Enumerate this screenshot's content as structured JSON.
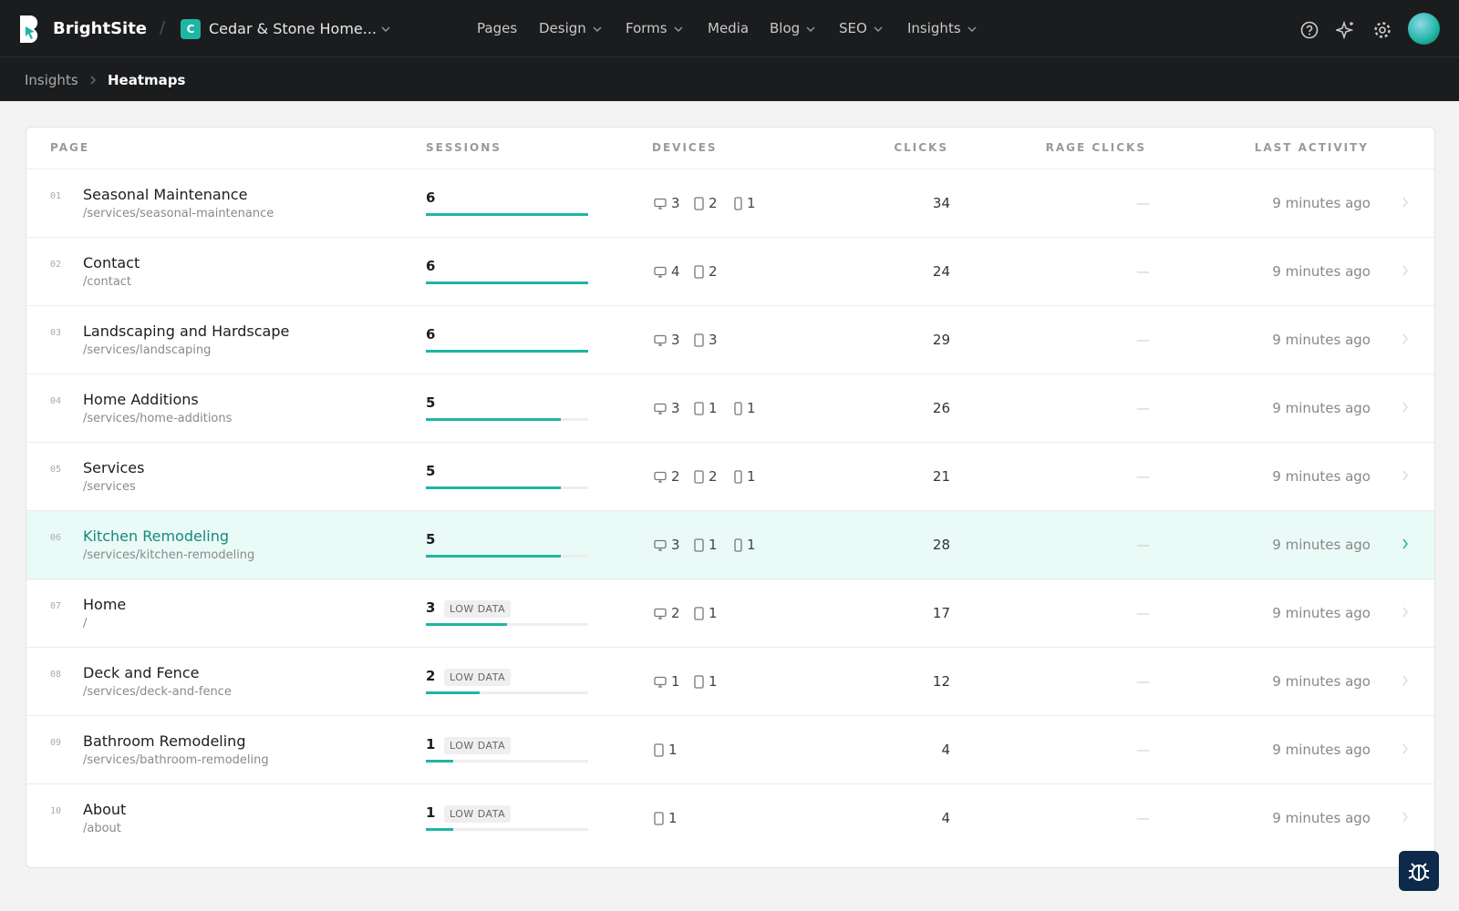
{
  "nav": {
    "brand": "BrightSite",
    "site_initial": "C",
    "site": "Cedar & Stone Home...",
    "menu": [
      {
        "label": "Pages",
        "dropdown": false
      },
      {
        "label": "Design",
        "dropdown": true
      },
      {
        "label": "Forms",
        "dropdown": true
      },
      {
        "label": "Media",
        "dropdown": false
      },
      {
        "label": "Blog",
        "dropdown": true
      },
      {
        "label": "SEO",
        "dropdown": true
      },
      {
        "label": "Insights",
        "dropdown": true
      }
    ]
  },
  "breadcrumb": [
    "Insights",
    "Heatmaps"
  ],
  "table": {
    "columns": [
      "PAGE",
      "SESSIONS",
      "DEVICES",
      "CLICKS",
      "RAGE CLICKS",
      "LAST ACTIVITY"
    ],
    "rows": [
      {
        "index": "01",
        "title": "Seasonal Maintenance",
        "path": "/services/seasonal-maintenance",
        "sessions": 6,
        "devices": {
          "desktop": 3,
          "tablet": 2,
          "mobile": 1
        },
        "clicks": 34,
        "rage_clicks": "—",
        "last_activity": "9 minutes ago"
      },
      {
        "index": "02",
        "title": "Contact",
        "path": "/contact",
        "sessions": 6,
        "devices": {
          "desktop": 4,
          "tablet": 2
        },
        "clicks": 24,
        "rage_clicks": "—",
        "last_activity": "9 minutes ago"
      },
      {
        "index": "03",
        "title": "Landscaping and Hardscape",
        "path": "/services/landscaping",
        "sessions": 6,
        "devices": {
          "desktop": 3,
          "tablet": 3
        },
        "clicks": 29,
        "rage_clicks": "—",
        "last_activity": "9 minutes ago"
      },
      {
        "index": "04",
        "title": "Home Additions",
        "path": "/services/home-additions",
        "sessions": 5,
        "devices": {
          "desktop": 3,
          "tablet": 1,
          "mobile": 1
        },
        "clicks": 26,
        "rage_clicks": "—",
        "last_activity": "9 minutes ago"
      },
      {
        "index": "05",
        "title": "Services",
        "path": "/services",
        "sessions": 5,
        "devices": {
          "desktop": 2,
          "tablet": 2,
          "mobile": 1
        },
        "clicks": 21,
        "rage_clicks": "—",
        "last_activity": "9 minutes ago"
      },
      {
        "index": "06",
        "title": "Kitchen Remodeling",
        "path": "/services/kitchen-remodeling",
        "sessions": 5,
        "devices": {
          "desktop": 3,
          "tablet": 1,
          "mobile": 1
        },
        "clicks": 28,
        "rage_clicks": "—",
        "last_activity": "9 minutes ago",
        "hovered": true
      },
      {
        "index": "07",
        "title": "Home",
        "path": "/",
        "sessions": 3,
        "badge": "LOW DATA",
        "devices": {
          "desktop": 2,
          "tablet": 1
        },
        "clicks": 17,
        "rage_clicks": "—",
        "last_activity": "9 minutes ago"
      },
      {
        "index": "08",
        "title": "Deck and Fence",
        "path": "/services/deck-and-fence",
        "sessions": 2,
        "badge": "LOW DATA",
        "devices": {
          "desktop": 1,
          "tablet": 1
        },
        "clicks": 12,
        "rage_clicks": "—",
        "last_activity": "9 minutes ago"
      },
      {
        "index": "09",
        "title": "Bathroom Remodeling",
        "path": "/services/bathroom-remodeling",
        "sessions": 1,
        "badge": "LOW DATA",
        "devices": {
          "tablet": 1
        },
        "clicks": 4,
        "rage_clicks": "—",
        "last_activity": "9 minutes ago"
      },
      {
        "index": "10",
        "title": "About",
        "path": "/about",
        "sessions": 1,
        "badge": "LOW DATA",
        "devices": {
          "tablet": 1
        },
        "clicks": 4,
        "rage_clicks": "—",
        "last_activity": "9 minutes ago"
      }
    ]
  }
}
